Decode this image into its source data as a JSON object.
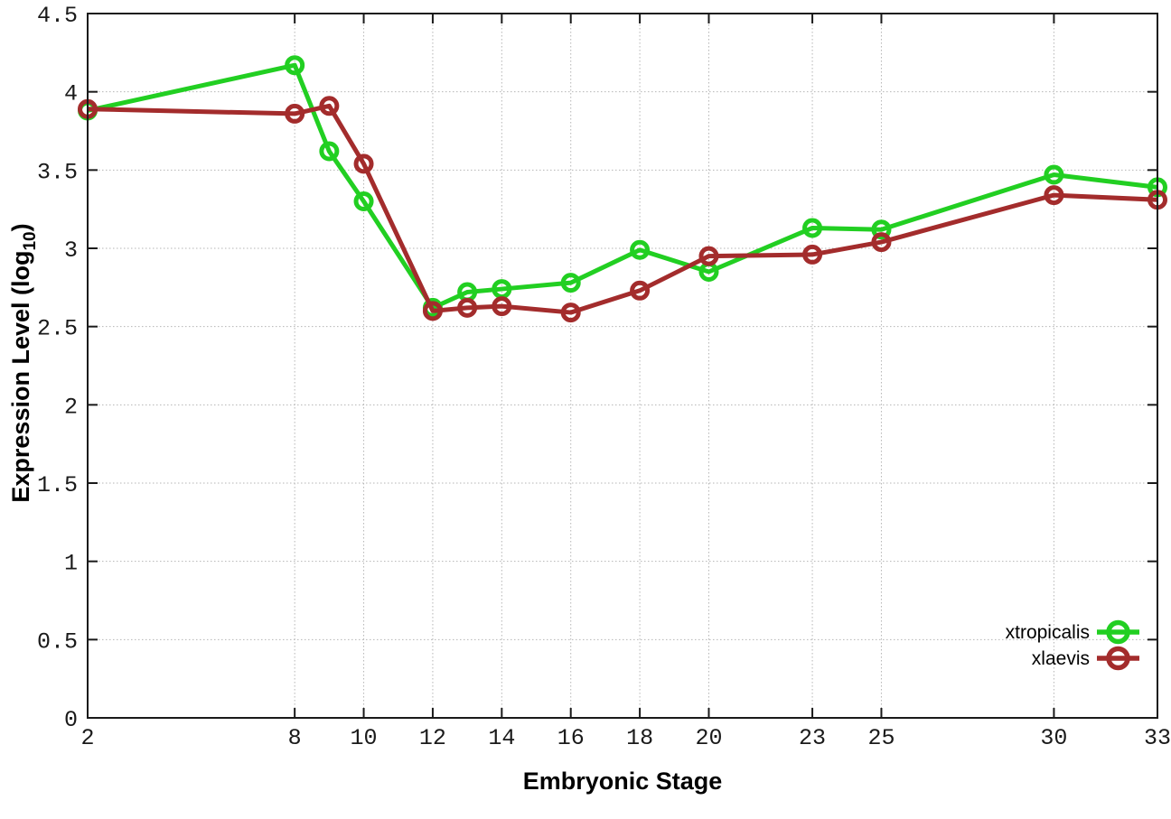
{
  "chart_data": {
    "type": "line",
    "title": "",
    "xlabel": "Embryonic Stage",
    "ylabel": "Expression Level (log10)",
    "ylabel_parts": {
      "prefix": "Expression Level (log",
      "subscript": "10",
      "suffix": ")"
    },
    "x": [
      2,
      8,
      9,
      10,
      12,
      13,
      14,
      16,
      18,
      20,
      23,
      25,
      30,
      33
    ],
    "series": [
      {
        "name": "xtropicalis",
        "color": "#22cf22",
        "marker": "open-circle",
        "values": [
          3.88,
          4.17,
          3.62,
          3.3,
          2.62,
          2.72,
          2.74,
          2.78,
          2.99,
          2.85,
          3.13,
          3.12,
          3.47,
          3.39
        ]
      },
      {
        "name": "xlaevis",
        "color": "#a32c2c",
        "marker": "open-circle",
        "values": [
          3.89,
          3.86,
          3.91,
          3.54,
          2.6,
          2.62,
          2.63,
          2.59,
          2.73,
          2.95,
          2.96,
          3.04,
          3.34,
          3.31
        ]
      }
    ],
    "xticks": [
      2,
      8,
      10,
      12,
      14,
      16,
      18,
      20,
      23,
      25,
      30,
      33
    ],
    "yticks": [
      0,
      0.5,
      1,
      1.5,
      2,
      2.5,
      3,
      3.5,
      4,
      4.5
    ],
    "xlim": [
      2,
      33
    ],
    "ylim": [
      0,
      4.5
    ],
    "grid": true,
    "grid_style": "dotted",
    "legend_position": "inside-right",
    "legend_entries": [
      "xtropicalis",
      "xlaevis"
    ],
    "colors": {
      "axis": "#1a1a1a",
      "grid": "#b5b5b5",
      "tick_label": "#1a1a1a",
      "background": "#ffffff"
    }
  }
}
